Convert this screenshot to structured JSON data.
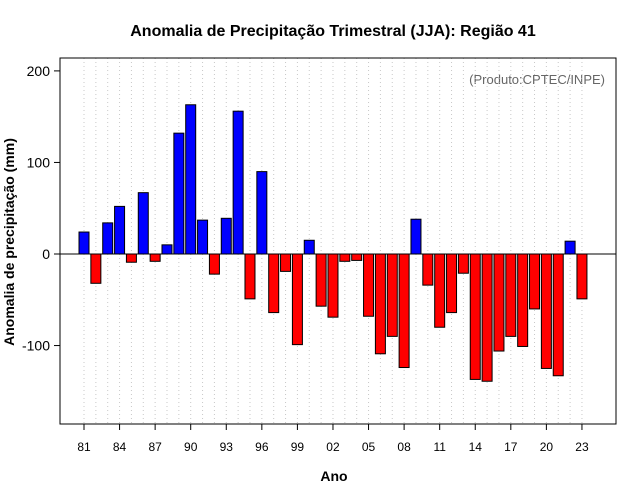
{
  "chart_data": {
    "type": "bar",
    "title": "Anomalia de Precipitação Trimestral (JJA): Região 41",
    "xlabel": "Ano",
    "ylabel": "Anomalia de precipitação (mm)",
    "annotation": "(Produto:CPTEC/INPE)",
    "ylim": [
      -190,
      215
    ],
    "yticks": [
      -100,
      0,
      100,
      200
    ],
    "grid": "vertical dotted",
    "positive_color": "#0000ff",
    "negative_color": "#ff0000",
    "years": [
      1981,
      1982,
      1983,
      1984,
      1985,
      1986,
      1987,
      1988,
      1989,
      1990,
      1991,
      1992,
      1993,
      1994,
      1995,
      1996,
      1997,
      1998,
      1999,
      2000,
      2001,
      2002,
      2003,
      2004,
      2005,
      2006,
      2007,
      2008,
      2009,
      2010,
      2011,
      2012,
      2013,
      2014,
      2015,
      2016,
      2017,
      2018,
      2019,
      2020,
      2021,
      2022,
      2023
    ],
    "x_tick_labels": [
      "81",
      "84",
      "87",
      "90",
      "93",
      "96",
      "99",
      "02",
      "05",
      "08",
      "11",
      "14",
      "17",
      "20",
      "23"
    ],
    "values": [
      24,
      -32,
      34,
      52,
      -9,
      67,
      -8,
      10,
      132,
      163,
      37,
      -22,
      39,
      156,
      -49,
      90,
      -64,
      -19,
      -99,
      15,
      -57,
      -69,
      -8,
      -7,
      -68,
      -109,
      -90,
      -124,
      38,
      -34,
      -80,
      -64,
      -21,
      -137,
      -139,
      -106,
      -90,
      -101,
      -60,
      -125,
      -133,
      14,
      -49
    ]
  }
}
